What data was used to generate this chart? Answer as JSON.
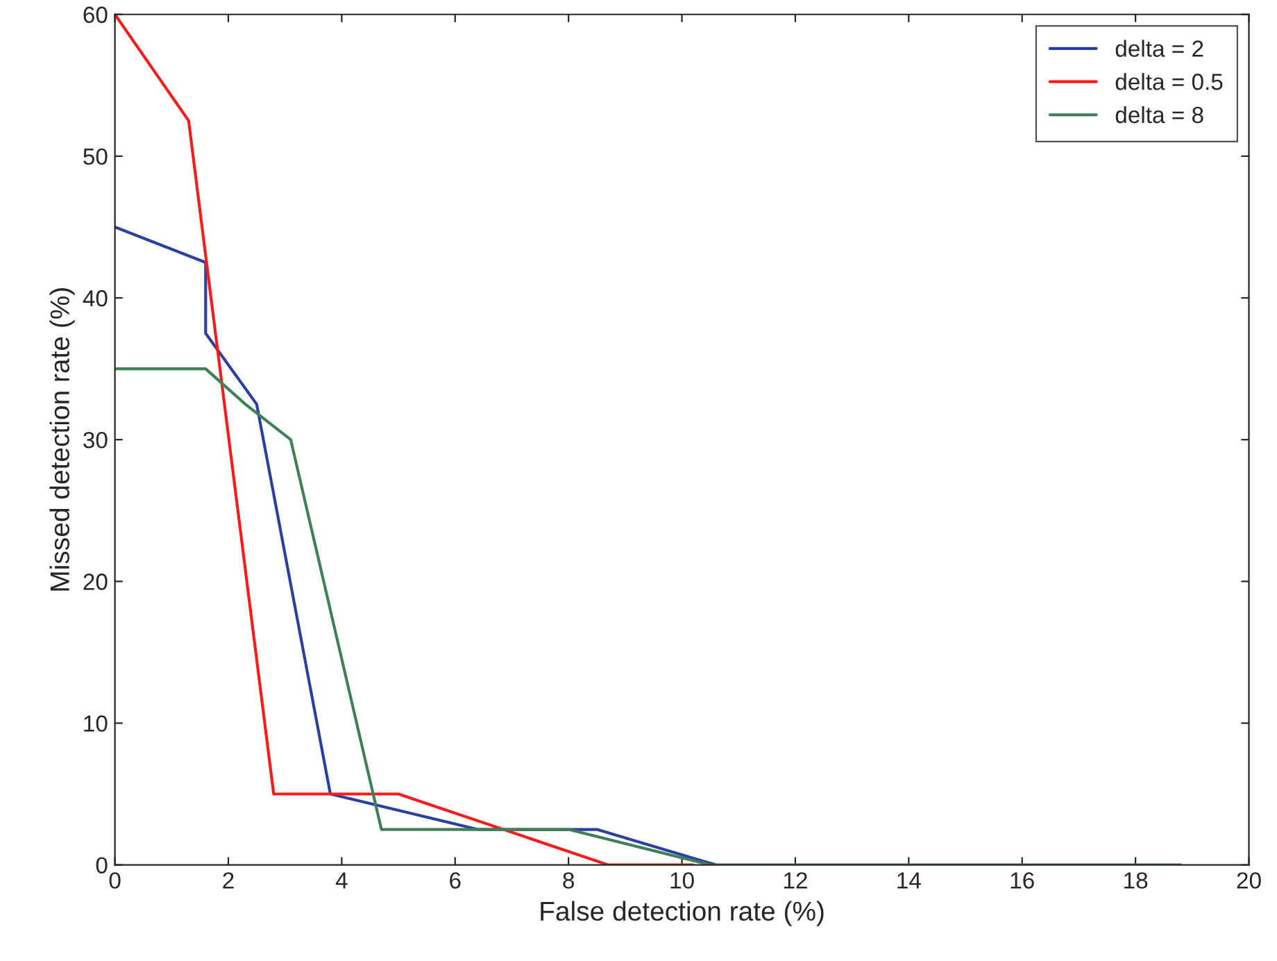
{
  "chart_data": {
    "type": "line",
    "xlabel": "False detection rate (%)",
    "ylabel": "Missed detection rate (%)",
    "xlim": [
      0,
      20
    ],
    "xticks": [
      0,
      2,
      4,
      6,
      8,
      10,
      12,
      14,
      16,
      18,
      20
    ],
    "ylim": [
      0,
      60
    ],
    "yticks": [
      0,
      10,
      20,
      30,
      40,
      50,
      60
    ],
    "grid": false,
    "legend": "top right",
    "line_style": "solid",
    "marker": "none",
    "series": [
      {
        "name": "delta = 2",
        "color": "#2b3fa0",
        "x": [
          0,
          1.6,
          1.6,
          2.5,
          3.8,
          6.4,
          8.5,
          10.6
        ],
        "values": [
          45,
          42.5,
          37.5,
          32.5,
          5,
          2.5,
          2.5,
          0
        ]
      },
      {
        "name": "delta = 0.5",
        "color": "#ff1a1a",
        "x": [
          0,
          1.3,
          2.8,
          5.0,
          8.7,
          10.2
        ],
        "values": [
          60,
          52.5,
          5,
          5,
          0,
          0
        ]
      },
      {
        "name": "delta = 8",
        "color": "#3f7f5a",
        "x": [
          0,
          1.6,
          2.3,
          3.1,
          4.7,
          8.0,
          10.5,
          18.8
        ],
        "values": [
          35,
          35,
          32.5,
          30,
          2.5,
          2.5,
          0,
          0
        ]
      }
    ]
  }
}
